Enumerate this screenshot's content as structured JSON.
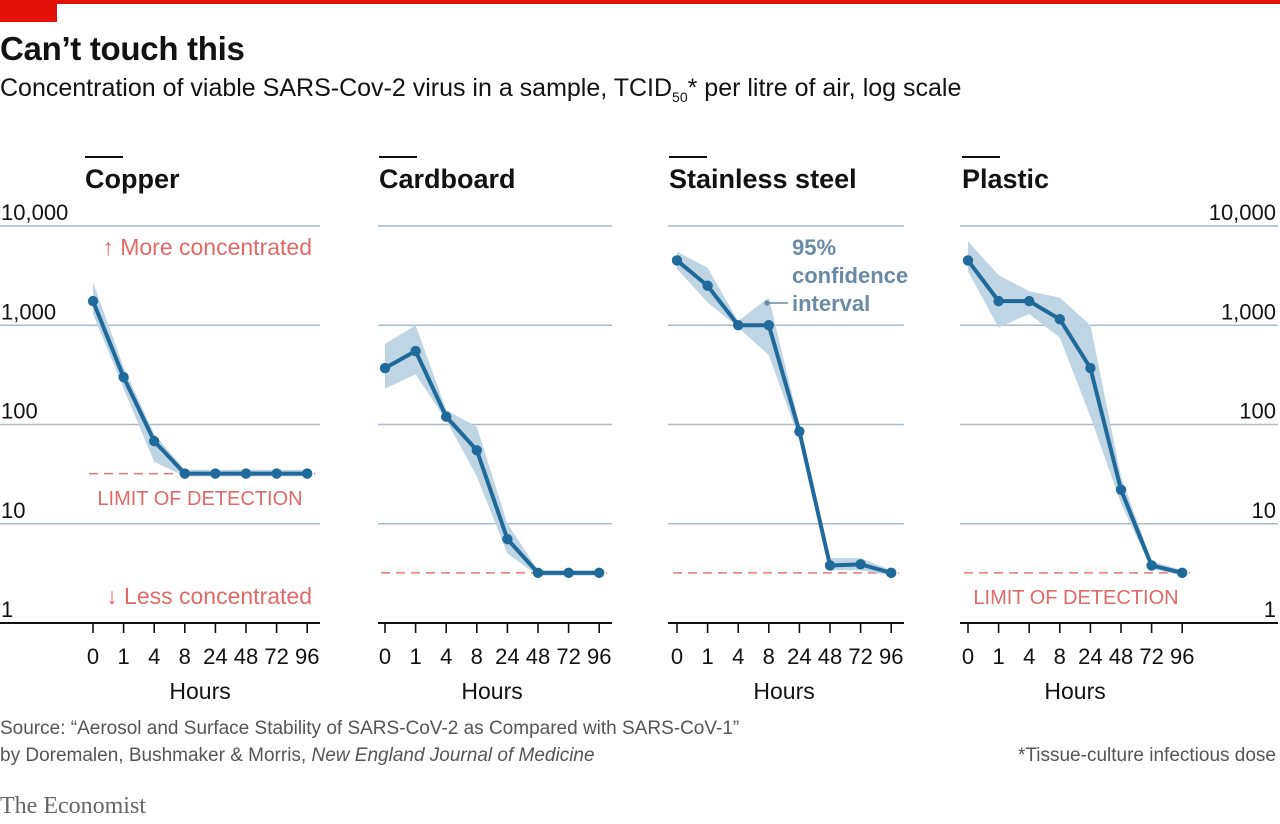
{
  "header": {
    "title": "Can’t touch this",
    "subtitle_main": "Concentration of viable SARS-Cov-2 virus in a sample, TCID",
    "subtitle_sub": "50",
    "subtitle_tail": "* per litre of air, log scale"
  },
  "chart_data": {
    "type": "line",
    "scale": "log",
    "ylim": [
      1,
      10000
    ],
    "y_ticks": [
      1,
      10,
      100,
      1000,
      10000
    ],
    "y_tick_labels": [
      "1",
      "10",
      "100",
      "1,000",
      "10,000"
    ],
    "categories": [
      "0",
      "1",
      "4",
      "8",
      "24",
      "48",
      "72",
      "96"
    ],
    "xlabel": "Hours",
    "colors": {
      "line": "#1f6a9a",
      "band": "#bcd3e2",
      "limit": "#e07a78",
      "grid": "#a9bccb",
      "annotation_red": "#e06a68",
      "annotation_blue": "#6b8aa3"
    },
    "panels": [
      {
        "name": "Copper",
        "values": [
          1750,
          300,
          68,
          32,
          32,
          32,
          32,
          32
        ],
        "ci_upper": [
          2700,
          380,
          80,
          35,
          35,
          35,
          35,
          35
        ],
        "ci_lower": [
          1300,
          230,
          42,
          30,
          30,
          30,
          30,
          30
        ],
        "limit_of_detection": 32
      },
      {
        "name": "Cardboard",
        "values": [
          370,
          550,
          120,
          55,
          7,
          3.2,
          3.2,
          3.2
        ],
        "ci_upper": [
          650,
          1000,
          140,
          95,
          10,
          3.4,
          3.4,
          3.4
        ],
        "ci_lower": [
          230,
          320,
          110,
          30,
          5,
          3.0,
          3.0,
          3.0
        ],
        "limit_of_detection": 3.2
      },
      {
        "name": "Stainless steel",
        "values": [
          4500,
          2500,
          1000,
          1000,
          85,
          3.8,
          3.9,
          3.2
        ],
        "ci_upper": [
          5500,
          3800,
          1100,
          1900,
          100,
          4.5,
          4.5,
          3.4
        ],
        "ci_lower": [
          3700,
          1700,
          950,
          500,
          70,
          3.4,
          3.4,
          3.0
        ],
        "limit_of_detection": 3.2
      },
      {
        "name": "Plastic",
        "values": [
          4500,
          1750,
          1750,
          1150,
          370,
          22,
          3.8,
          3.2
        ],
        "ci_upper": [
          7000,
          3200,
          2200,
          1900,
          1000,
          30,
          4.2,
          3.4
        ],
        "ci_lower": [
          3500,
          950,
          1300,
          750,
          120,
          16,
          3.5,
          3.0
        ],
        "limit_of_detection": 3.2
      }
    ]
  },
  "annotations": {
    "more_concentrated": "↑ More concentrated",
    "less_concentrated": "↓ Less concentrated",
    "limit_of_detection": "LIMIT OF DETECTION",
    "confidence_line1": "95%",
    "confidence_line2": "confidence",
    "confidence_line3": "interval"
  },
  "footer": {
    "source_line1": "Source: “Aerosol and Surface Stability of SARS-CoV-2 as Compared with SARS-CoV-1”",
    "source_line2_plain": "by Doremalen, Bushmaker & Morris, ",
    "source_line2_italic": "New England Journal of Medicine",
    "footnote": "*Tissue-culture infectious dose",
    "brand": "The Economist"
  }
}
